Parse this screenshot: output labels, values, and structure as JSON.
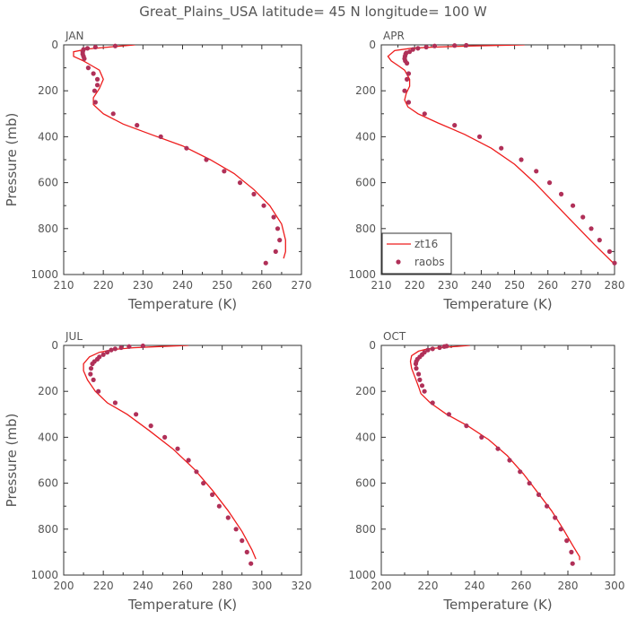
{
  "title": "Great_Plains_USA   latitude= 45 N longitude= 100 W",
  "colors": {
    "model": "#ee1c1c",
    "obs": "#b03058",
    "axis": "#333333",
    "text": "#555555"
  },
  "chart_data": [
    {
      "type": "line",
      "panel_label": "JAN",
      "xlabel": "Temperature (K)",
      "ylabel": "Pressure (mb)",
      "xlim": [
        210,
        270
      ],
      "ylim": [
        1000,
        0
      ],
      "xticks": [
        210,
        220,
        230,
        240,
        250,
        260,
        270
      ],
      "yticks": [
        0,
        200,
        400,
        600,
        800,
        1000
      ],
      "series": [
        {
          "name": "zt16",
          "kind": "line",
          "x": [
            228,
            221,
            216,
            212.5,
            212.5,
            215,
            217,
            219,
            220,
            219,
            217.5,
            217.5,
            220,
            225,
            232,
            240,
            247,
            253,
            258,
            262,
            265,
            266,
            266,
            265.5
          ],
          "y": [
            0,
            10,
            18,
            30,
            50,
            70,
            90,
            110,
            150,
            190,
            230,
            260,
            300,
            345,
            390,
            440,
            500,
            560,
            630,
            700,
            780,
            850,
            900,
            930
          ]
        },
        {
          "name": "raobs",
          "kind": "points",
          "x": [
            223,
            218,
            216,
            215,
            214.8,
            214.8,
            215,
            215.2,
            216.2,
            217.5,
            218.5,
            218.5,
            217.8,
            218,
            222.5,
            228.5,
            234.5,
            241,
            246,
            250.5,
            254.5,
            258,
            260.5,
            263,
            264,
            264.5,
            263.5,
            261
          ],
          "y": [
            5,
            10,
            15,
            20,
            30,
            40,
            50,
            60,
            100,
            125,
            150,
            175,
            200,
            250,
            300,
            350,
            400,
            450,
            500,
            550,
            600,
            650,
            700,
            750,
            800,
            850,
            900,
            950
          ]
        }
      ]
    },
    {
      "type": "line",
      "panel_label": "APR",
      "xlabel": "Temperature (K)",
      "ylabel": "",
      "xlim": [
        210,
        280
      ],
      "ylim": [
        1000,
        0
      ],
      "xticks": [
        210,
        220,
        230,
        240,
        250,
        260,
        270,
        280
      ],
      "yticks": [
        0,
        200,
        400,
        600,
        800,
        1000
      ],
      "legend": {
        "position": "bottom-left",
        "entries": [
          "zt16",
          "raobs"
        ]
      },
      "series": [
        {
          "name": "zt16",
          "kind": "line",
          "x": [
            253,
            236,
            225,
            219,
            214,
            212,
            213,
            215,
            217,
            218.5,
            218.5,
            217.5,
            217,
            218,
            221,
            227,
            235,
            243,
            250,
            256,
            262,
            268,
            274,
            280
          ],
          "y": [
            0,
            5,
            10,
            15,
            25,
            50,
            70,
            90,
            110,
            150,
            180,
            210,
            240,
            270,
            300,
            340,
            390,
            450,
            520,
            600,
            690,
            780,
            870,
            955
          ]
        },
        {
          "name": "raobs",
          "kind": "points",
          "x": [
            235.5,
            232,
            226,
            223.5,
            221,
            219.5,
            218.5,
            217.5,
            217.3,
            217.1,
            217,
            217.2,
            217.7,
            218.2,
            217.7,
            217,
            218.2,
            223,
            232,
            239.5,
            246,
            252,
            256.5,
            260.5,
            264,
            267.5,
            270.5,
            273,
            275.5,
            278.5,
            280
          ],
          "y": [
            2,
            3,
            5,
            10,
            15,
            20,
            30,
            35,
            40,
            50,
            60,
            70,
            80,
            125,
            150,
            200,
            250,
            300,
            350,
            400,
            450,
            500,
            550,
            600,
            650,
            700,
            750,
            800,
            850,
            900,
            950
          ]
        }
      ]
    },
    {
      "type": "line",
      "panel_label": "JUL",
      "xlabel": "Temperature (K)",
      "ylabel": "Pressure (mb)",
      "xlim": [
        200,
        320
      ],
      "ylim": [
        1000,
        0
      ],
      "xticks": [
        200,
        220,
        240,
        260,
        280,
        300,
        320
      ],
      "yticks": [
        0,
        200,
        400,
        600,
        800,
        1000
      ],
      "series": [
        {
          "name": "zt16",
          "kind": "line",
          "x": [
            263,
            248,
            235,
            225,
            218,
            213,
            210,
            210,
            212,
            216,
            222,
            232,
            243,
            255,
            266,
            275,
            283,
            290,
            295,
            297
          ],
          "y": [
            0,
            5,
            10,
            18,
            30,
            50,
            80,
            110,
            150,
            200,
            250,
            300,
            370,
            450,
            540,
            630,
            720,
            810,
            890,
            930
          ]
        },
        {
          "name": "raobs",
          "kind": "points",
          "x": [
            240,
            233,
            229,
            226,
            224,
            222,
            220,
            218,
            217,
            215.5,
            214.5,
            213.8,
            213.5,
            215,
            217.5,
            226,
            236.5,
            244,
            251,
            257.5,
            263,
            267,
            270.5,
            275,
            278.5,
            283,
            287,
            290,
            292.5,
            294.5
          ],
          "y": [
            2,
            5,
            10,
            15,
            20,
            30,
            40,
            50,
            60,
            70,
            80,
            100,
            125,
            150,
            200,
            250,
            300,
            350,
            400,
            450,
            500,
            550,
            600,
            650,
            700,
            750,
            800,
            850,
            900,
            950
          ]
        }
      ]
    },
    {
      "type": "line",
      "panel_label": "OCT",
      "xlabel": "Temperature (K)",
      "ylabel": "",
      "xlim": [
        200,
        300
      ],
      "ylim": [
        1000,
        0
      ],
      "xticks": [
        200,
        220,
        240,
        260,
        280,
        300
      ],
      "yticks": [
        0,
        200,
        400,
        600,
        800,
        1000
      ],
      "series": [
        {
          "name": "zt16",
          "kind": "line",
          "x": [
            238,
            228,
            220,
            216,
            213,
            212.5,
            213,
            214.5,
            216,
            217,
            221,
            228,
            237,
            246,
            254,
            261,
            267,
            273,
            278,
            282,
            285,
            285
          ],
          "y": [
            0,
            8,
            15,
            25,
            45,
            70,
            100,
            140,
            180,
            210,
            250,
            300,
            350,
            410,
            480,
            560,
            640,
            720,
            800,
            870,
            920,
            935
          ]
        },
        {
          "name": "raobs",
          "kind": "points",
          "x": [
            228,
            227,
            225,
            222,
            220,
            218.5,
            217.5,
            216.5,
            215.5,
            215,
            214.8,
            215,
            216,
            216.5,
            217.5,
            218.5,
            222,
            229,
            236.5,
            243,
            250,
            255,
            259.5,
            263.5,
            267.5,
            271,
            274.5,
            277,
            279.5,
            281.5,
            282
          ],
          "y": [
            3,
            5,
            10,
            15,
            20,
            30,
            40,
            50,
            60,
            70,
            80,
            100,
            125,
            150,
            175,
            200,
            250,
            300,
            350,
            400,
            450,
            500,
            550,
            600,
            650,
            700,
            750,
            800,
            850,
            900,
            950
          ]
        }
      ]
    }
  ]
}
